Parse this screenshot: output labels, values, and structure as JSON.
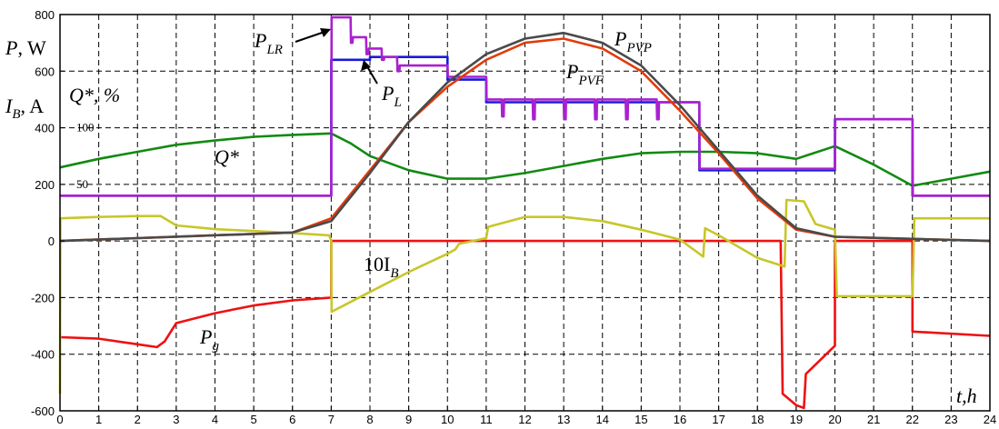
{
  "chart_data": {
    "type": "line",
    "xlabel": "t,h",
    "xlim": [
      0,
      24
    ],
    "ylim": [
      -600,
      800
    ],
    "grid": true,
    "x_ticks": [
      "0",
      "1",
      "2",
      "3",
      "4",
      "5",
      "6",
      "7",
      "8",
      "9",
      "10",
      "11",
      "12",
      "13",
      "14",
      "15",
      "16",
      "17",
      "18",
      "19",
      "20",
      "21",
      "22",
      "23",
      "24"
    ],
    "y_ticks": [
      "800",
      "600",
      "400",
      "200",
      "0",
      "-200",
      "-400",
      "-600"
    ],
    "q_ticks": [
      {
        "label": "100",
        "y": 400
      },
      {
        "label": "50",
        "y": 200
      }
    ],
    "ylabels": {
      "p": {
        "main": "P",
        "rest": ", W"
      },
      "ib": {
        "main": "I",
        "sub": "B",
        "rest": ", A"
      },
      "q": {
        "main": "Q*",
        "rest": ", %"
      }
    },
    "series_labels": {
      "plr": {
        "main": "P",
        "sub": "LR"
      },
      "pl": {
        "main": "P",
        "sub": "L"
      },
      "pvp": {
        "main": "P",
        "sub": "PVP"
      },
      "pvf": {
        "main": "P",
        "sub": "PVF"
      },
      "q": {
        "main": "Q*",
        "sub": ""
      },
      "ib": {
        "main": "10I",
        "sub": "B"
      },
      "pg": {
        "main": "P",
        "sub": "g"
      }
    },
    "series": [
      {
        "key": "pg",
        "color": "#ee1111",
        "x": [
          0,
          1,
          2,
          2.5,
          2.7,
          3,
          4,
          5,
          6,
          7,
          7.001,
          9.5,
          10,
          11,
          12,
          13,
          14,
          15,
          16,
          17,
          18,
          18.6,
          18.65,
          19,
          19.2,
          19.25,
          20,
          20.001,
          22,
          22.001,
          24
        ],
        "y": [
          -340,
          -345,
          -365,
          -375,
          -355,
          -290,
          -255,
          -228,
          -210,
          -200,
          0,
          0,
          0,
          0,
          0,
          0,
          0,
          0,
          0,
          0,
          0,
          0,
          -540,
          -580,
          -590,
          -470,
          -370,
          0,
          0,
          -320,
          -335
        ]
      },
      {
        "key": "ib",
        "color": "#c8c62a",
        "x": [
          0,
          0.01,
          1,
          2,
          2.6,
          3,
          4,
          5,
          6,
          6.95,
          7,
          7.01,
          8,
          9,
          9.3,
          10,
          10.2,
          10.3,
          11,
          11.05,
          12,
          13,
          14,
          15,
          16,
          16.6,
          16.65,
          17,
          18,
          18.7,
          18.75,
          19.2,
          19.5,
          20,
          20.05,
          22,
          22.05,
          24
        ],
        "y": [
          -540,
          80,
          85,
          88,
          88,
          55,
          42,
          35,
          28,
          20,
          0,
          -250,
          -180,
          -110,
          -90,
          -45,
          -30,
          -10,
          10,
          50,
          85,
          85,
          70,
          40,
          5,
          -55,
          45,
          20,
          -60,
          -90,
          145,
          140,
          60,
          40,
          -195,
          -195,
          80,
          80
        ]
      },
      {
        "key": "q",
        "color": "#128a12",
        "x": [
          0,
          1,
          2,
          3,
          4,
          5,
          6,
          7,
          7.5,
          8,
          9,
          10,
          11,
          12,
          13,
          14,
          15,
          16,
          17,
          18,
          19,
          20,
          21,
          22,
          23,
          24
        ],
        "y": [
          260,
          290,
          315,
          340,
          355,
          368,
          375,
          380,
          345,
          300,
          250,
          220,
          220,
          240,
          265,
          290,
          310,
          315,
          315,
          310,
          290,
          335,
          270,
          195,
          220,
          245
        ]
      },
      {
        "key": "pl",
        "color": "#1a1ad8",
        "x": [
          0,
          7,
          7.001,
          8,
          8.001,
          10,
          10.001,
          11,
          11.001,
          16.5,
          16.501,
          20,
          20.001,
          21,
          22,
          22.001,
          24
        ],
        "y": [
          160,
          160,
          640,
          640,
          650,
          650,
          570,
          570,
          490,
          490,
          250,
          250,
          430,
          430,
          430,
          160,
          160
        ]
      },
      {
        "key": "plr",
        "color": "#aa20d0",
        "x": [
          0,
          7,
          7.01,
          7.5,
          7.51,
          7.55,
          7.56,
          7.9,
          7.91,
          7.96,
          7.97,
          8.3,
          8.31,
          8.36,
          8.37,
          8.7,
          8.71,
          8.76,
          8.77,
          10,
          10.01,
          11,
          11.01,
          11.4,
          11.41,
          11.45,
          11.46,
          12.2,
          12.21,
          12.25,
          12.26,
          13,
          13.01,
          13.05,
          13.06,
          13.8,
          13.81,
          13.85,
          13.86,
          14.6,
          14.61,
          14.65,
          14.66,
          15.4,
          15.41,
          15.45,
          15.46,
          16.5,
          16.51,
          20,
          20.01,
          22,
          22.01,
          24
        ],
        "y": [
          160,
          160,
          790,
          790,
          700,
          700,
          720,
          720,
          660,
          660,
          680,
          680,
          640,
          640,
          650,
          650,
          600,
          600,
          620,
          620,
          580,
          580,
          500,
          500,
          440,
          440,
          500,
          500,
          430,
          430,
          500,
          500,
          430,
          430,
          500,
          500,
          430,
          430,
          500,
          500,
          430,
          430,
          500,
          500,
          430,
          430,
          490,
          490,
          255,
          255,
          430,
          430,
          160,
          160
        ]
      },
      {
        "key": "pvf",
        "color": "#e23b0c",
        "x": [
          0,
          6,
          7,
          8,
          9,
          10,
          11,
          12,
          13,
          14,
          15,
          16,
          17,
          18,
          19,
          20,
          24
        ],
        "y": [
          0,
          30,
          80,
          250,
          420,
          545,
          640,
          700,
          715,
          680,
          600,
          460,
          310,
          150,
          40,
          15,
          0
        ]
      },
      {
        "key": "pvp",
        "color": "#4a4a4a",
        "x": [
          0,
          6,
          7,
          8,
          9,
          10,
          11,
          12,
          13,
          14,
          15,
          16,
          17,
          18,
          19,
          20,
          24
        ],
        "y": [
          0,
          30,
          70,
          240,
          420,
          560,
          660,
          715,
          735,
          700,
          620,
          480,
          320,
          160,
          45,
          15,
          0
        ]
      }
    ]
  }
}
